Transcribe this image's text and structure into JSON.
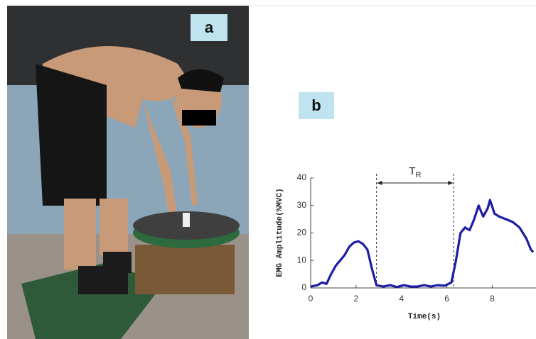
{
  "panel_a": "a",
  "panel_b": "b",
  "chart_data": {
    "type": "line",
    "x_label": "Time(s)",
    "y_label": "EMG Amplitude(%MVC)",
    "x": [
      0,
      0.3,
      0.5,
      0.7,
      0.9,
      1.1,
      1.3,
      1.5,
      1.7,
      1.9,
      2.1,
      2.3,
      2.5,
      2.7,
      2.9,
      3.2,
      3.5,
      3.8,
      4.1,
      4.4,
      4.7,
      5.0,
      5.3,
      5.6,
      5.9,
      6.2,
      6.4,
      6.6,
      6.8,
      7.0,
      7.2,
      7.4,
      7.6,
      7.8,
      7.9,
      8.1,
      8.3,
      8.6,
      8.9,
      9.2,
      9.5,
      9.7,
      9.8
    ],
    "values": [
      0.5,
      1,
      2,
      1.5,
      5,
      8,
      10,
      12,
      15,
      16.5,
      17,
      16,
      14,
      7,
      1,
      0.5,
      1,
      0.3,
      1,
      0.5,
      0.5,
      1,
      0.5,
      1,
      0.8,
      2,
      10,
      20,
      22,
      21,
      25,
      30,
      26,
      29,
      32,
      27,
      26,
      25,
      24,
      22,
      18,
      14,
      13
    ],
    "color": "#1c1ca6",
    "xlim": [
      0,
      9.8
    ],
    "xticks": [
      0,
      2,
      4,
      6,
      8
    ],
    "ylim": [
      0,
      40
    ],
    "yticks": [
      0,
      10,
      20,
      30,
      40
    ],
    "annotation": {
      "text": "T",
      "subscript": "R",
      "x_start": 2.9,
      "x_end": 6.3
    }
  }
}
